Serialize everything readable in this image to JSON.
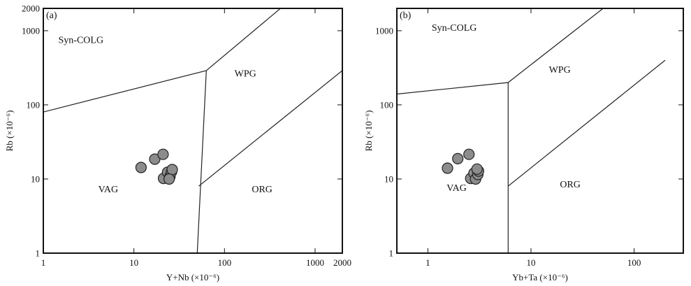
{
  "chart_data": [
    {
      "type": "scatter",
      "panel_label": "(a)",
      "xlabel": "Y+Nb (×10⁻⁶)",
      "ylabel": "Rb (×10⁻⁶)",
      "x_scale": "log",
      "y_scale": "log",
      "xlim": [
        1,
        2000
      ],
      "ylim": [
        1,
        2000
      ],
      "x_ticks": [
        1,
        10,
        100,
        1000,
        2000
      ],
      "x_tick_labels": [
        "1",
        "10",
        "100",
        "1000",
        "2000"
      ],
      "y_ticks": [
        1,
        10,
        100,
        1000,
        2000
      ],
      "y_tick_labels": [
        "1",
        "10",
        "100",
        "1000",
        "2000"
      ],
      "grid": false,
      "fields": [
        {
          "label": "Syn-COLG",
          "x": 2.6,
          "y": 680
        },
        {
          "label": "WPG",
          "x": 170,
          "y": 240
        },
        {
          "label": "VAG",
          "x": 5.2,
          "y": 6.6
        },
        {
          "label": "ORG",
          "x": 260,
          "y": 6.6
        }
      ],
      "boundaries": [
        [
          [
            1,
            80
          ],
          [
            63,
            290
          ],
          [
            2000,
            10000
          ]
        ],
        [
          [
            63,
            290
          ],
          [
            50,
            1
          ]
        ],
        [
          [
            52,
            8
          ],
          [
            2000,
            290
          ]
        ]
      ],
      "points": [
        {
          "x": 12,
          "y": 14.3
        },
        {
          "x": 17,
          "y": 18.5
        },
        {
          "x": 21,
          "y": 21.5
        },
        {
          "x": 21.2,
          "y": 10.2
        },
        {
          "x": 23.5,
          "y": 12.3
        },
        {
          "x": 25,
          "y": 10.8
        },
        {
          "x": 26,
          "y": 12.5
        },
        {
          "x": 26.5,
          "y": 13.4
        },
        {
          "x": 24.5,
          "y": 10
        }
      ]
    },
    {
      "type": "scatter",
      "panel_label": "(b)",
      "xlabel": "Yb+Ta (×10⁻⁶)",
      "ylabel": "Rb (×10⁻⁶)",
      "x_scale": "log",
      "y_scale": "log",
      "xlim": [
        0.5,
        300
      ],
      "ylim": [
        1,
        2000
      ],
      "x_ticks": [
        1,
        10,
        100
      ],
      "x_tick_labels": [
        "1",
        "10",
        "100"
      ],
      "y_ticks": [
        1,
        10,
        100,
        1000
      ],
      "y_tick_labels": [
        "1",
        "10",
        "100",
        "1000"
      ],
      "grid": false,
      "fields": [
        {
          "label": "Syn-COLG",
          "x": 1.8,
          "y": 1000
        },
        {
          "label": "WPG",
          "x": 19,
          "y": 270
        },
        {
          "label": "VAG",
          "x": 1.9,
          "y": 6.9
        },
        {
          "label": "ORG",
          "x": 24,
          "y": 7.7
        }
      ],
      "boundaries": [
        [
          [
            0.5,
            140
          ],
          [
            6,
            200
          ],
          [
            50,
            2000
          ]
        ],
        [
          [
            6,
            200
          ],
          [
            6,
            1
          ]
        ],
        [
          [
            6,
            8
          ],
          [
            200,
            400
          ]
        ]
      ],
      "points": [
        {
          "x": 1.55,
          "y": 14
        },
        {
          "x": 1.95,
          "y": 18.8
        },
        {
          "x": 2.5,
          "y": 21.5
        },
        {
          "x": 2.6,
          "y": 10.2
        },
        {
          "x": 2.8,
          "y": 12
        },
        {
          "x": 2.9,
          "y": 10
        },
        {
          "x": 3.05,
          "y": 11.5
        },
        {
          "x": 3.1,
          "y": 12.8
        },
        {
          "x": 3.0,
          "y": 13.6
        }
      ]
    }
  ]
}
